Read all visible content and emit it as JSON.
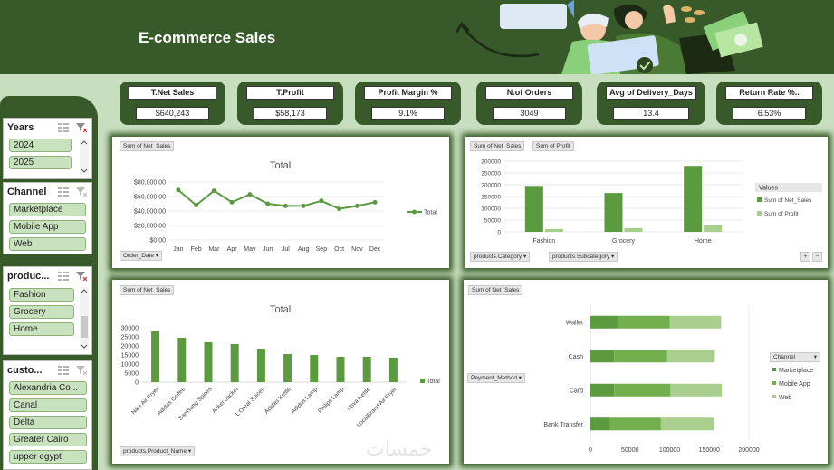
{
  "header": {
    "title": "E-commerce Sales"
  },
  "kpis": [
    {
      "label": "T.Net Sales",
      "value": "$640,243"
    },
    {
      "label": "T.Profit",
      "value": "$58,173"
    },
    {
      "label": "Profit Margin %",
      "value": "9.1%"
    },
    {
      "label": "N.of Orders",
      "value": "3049"
    },
    {
      "label": "Avg of Delivery_Days",
      "value": "13.4"
    },
    {
      "label": "Return Rate %..",
      "value": "6.53%"
    }
  ],
  "slicers": {
    "years": {
      "title": "Years",
      "items": [
        "2024",
        "2025"
      ]
    },
    "channel": {
      "title": "Channel",
      "items": [
        "Marketplace",
        "Mobile App",
        "Web"
      ]
    },
    "products": {
      "title": "produc...",
      "items": [
        "Fashion",
        "Grocery",
        "Home"
      ]
    },
    "customers": {
      "title": "custo...",
      "items": [
        "Alexandria Co...",
        "Canal",
        "Delta",
        "Greater Cairo",
        "upper egypt"
      ]
    }
  },
  "icons": {
    "multi_select": "multi-select-icon",
    "clear_filter": "clear-filter-icon",
    "filter": "filter-icon",
    "dropdown": "dropdown-icon"
  },
  "colors": {
    "header": "#385a2a",
    "background": "#c7dfbf",
    "series_dark": "#5c9a3f",
    "series_mid": "#72b04d",
    "series_light": "#a8cf8e"
  },
  "charts": {
    "line": {
      "field": "Sum of Net_Sales",
      "axis_field": "Order_Date"
    },
    "category": {
      "fields": [
        "Sum of Net_Sales",
        "Sum of Profit"
      ],
      "axis_fields": [
        "products.Category",
        "products.Subcategory"
      ],
      "legend_title": "Values",
      "expand": "+",
      "collapse": "−"
    },
    "product": {
      "field": "Sum of Net_Sales",
      "axis_field": "products.Product_Name"
    },
    "payment": {
      "field": "Sum of Net_Sales",
      "axis_field": "Payment_Method",
      "legend_field": "Channel"
    }
  },
  "chart_data": [
    {
      "type": "line",
      "title": "Total",
      "categories": [
        "Jan",
        "Feb",
        "Mar",
        "Apr",
        "May",
        "Jun",
        "Jul",
        "Aug",
        "Sep",
        "Oct",
        "Nov",
        "Dec"
      ],
      "series": [
        {
          "name": "Total",
          "values": [
            69000,
            48000,
            68000,
            52000,
            63000,
            50000,
            47000,
            47000,
            54000,
            43000,
            47000,
            52000
          ]
        }
      ],
      "yticks": [
        "$0.00",
        "$20,000.00",
        "$40,000.00",
        "$60,000.00",
        "$80,000.00"
      ],
      "ylim": [
        0,
        80000
      ]
    },
    {
      "type": "bar",
      "categories": [
        "Fashion",
        "Grocery",
        "Home"
      ],
      "series": [
        {
          "name": "Sum of Net_Sales",
          "values": [
            195000,
            165000,
            280000
          ]
        },
        {
          "name": "Sum of Profit",
          "values": [
            12000,
            16000,
            30000
          ]
        }
      ],
      "yticks": [
        "0",
        "50000",
        "100000",
        "150000",
        "200000",
        "250000",
        "300000"
      ],
      "ylim": [
        0,
        300000
      ]
    },
    {
      "type": "bar",
      "title": "Total",
      "categories": [
        "Nike Air Fryer",
        "Adidas Coffee",
        "Samsung Spices",
        "Anker Jacket",
        "L'Oreal Spices",
        "Adidas Kettle",
        "Adidas Lamp",
        "Philips Lamp",
        "Nova Kettle",
        "LocalBrand Air Fryer"
      ],
      "series": [
        {
          "name": "Total",
          "values": [
            28000,
            24500,
            22000,
            21000,
            18500,
            15500,
            15000,
            14000,
            14000,
            13500
          ]
        }
      ],
      "yticks": [
        "0",
        "5000",
        "10000",
        "15000",
        "20000",
        "25000",
        "30000"
      ],
      "ylim": [
        0,
        30000
      ]
    },
    {
      "type": "bar",
      "orientation": "horizontal-stacked",
      "categories": [
        "Wallet",
        "Cash",
        "Card",
        "Bank Transfer"
      ],
      "series": [
        {
          "name": "Marketplace",
          "values": [
            35000,
            30000,
            30000,
            25000
          ]
        },
        {
          "name": "Mobile App",
          "values": [
            65000,
            67000,
            71000,
            64000
          ]
        },
        {
          "name": "Web",
          "values": [
            65000,
            60000,
            65000,
            67000
          ]
        }
      ],
      "xticks": [
        "0",
        "50000",
        "100000",
        "150000",
        "200000"
      ],
      "xlim": [
        0,
        200000
      ]
    }
  ],
  "watermark": "خمسات"
}
